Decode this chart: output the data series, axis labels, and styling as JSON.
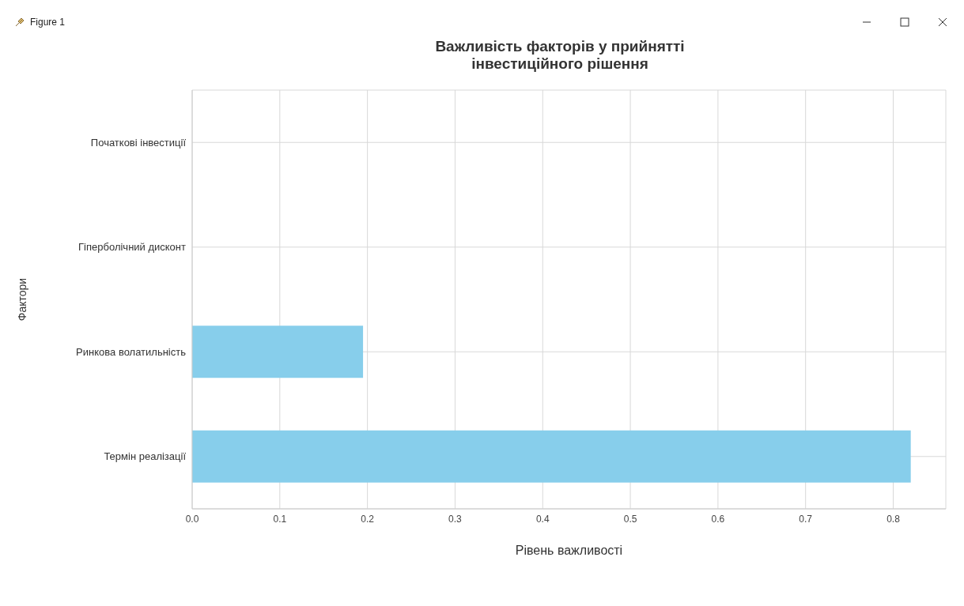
{
  "chart_data": {
    "type": "bar",
    "orientation": "horizontal",
    "title": "Важливість факторів у прийнятті\nінвестиційного рішення",
    "xlabel": "Рівень важливості",
    "ylabel": "Фактори",
    "annotations": [
      "Figure 1"
    ],
    "categories": [
      "Початкові інвестиції",
      "Гіперболічний дисконт",
      "Ринкова волатильність",
      "Термін реалізації"
    ],
    "values": [
      0,
      0,
      0.195,
      0.82
    ],
    "color": "#87ceeb",
    "xlim": [
      0,
      0.86
    ],
    "xticks": [
      {
        "value": 0,
        "label": "0.0"
      },
      0.1,
      0.2,
      0.3,
      0.4,
      0.5,
      0.6,
      0.7,
      0.8
    ],
    "grid": true
  }
}
